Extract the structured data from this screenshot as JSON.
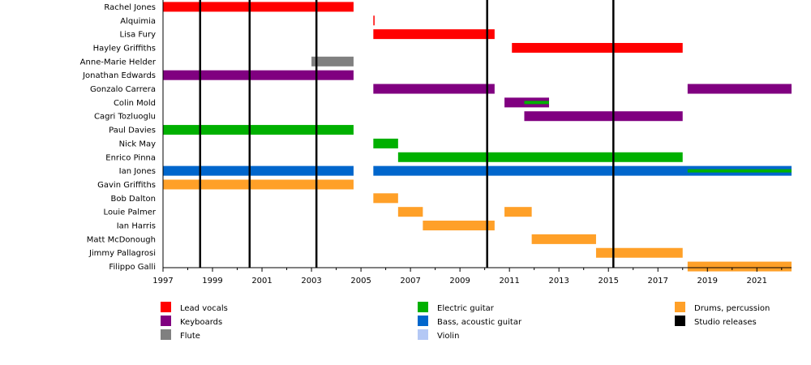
{
  "chart_data": {
    "type": "timeline",
    "title": "",
    "xlabel": "",
    "ylabel": "",
    "xlim": [
      1997,
      2022.4
    ],
    "x_ticks": [
      "1997",
      "1999",
      "2001",
      "2003",
      "2005",
      "2007",
      "2009",
      "2011",
      "2013",
      "2015",
      "2017",
      "2019",
      "2021"
    ],
    "members": [
      "Rachel Jones",
      "Alquimia",
      "Lisa Fury",
      "Hayley Griffiths",
      "Anne-Marie Helder",
      "Jonathan Edwards",
      "Gonzalo Carrera",
      "Colin Mold",
      "Cagri Tozluoglu",
      "Paul Davies",
      "Nick May",
      "Enrico Pinna",
      "Ian Jones",
      "Gavin Griffiths",
      "Bob Dalton",
      "Louie Palmer",
      "Ian Harris",
      "Matt McDonough",
      "Jimmy Pallagrosi",
      "Filippo Galli"
    ],
    "roles": [
      {
        "key": "vocals",
        "label": "Lead vocals",
        "color": "#ff0000"
      },
      {
        "key": "keyboards",
        "label": "Keyboards",
        "color": "#800080"
      },
      {
        "key": "flute",
        "label": "Flute",
        "color": "#808080"
      },
      {
        "key": "guitar",
        "label": "Electric guitar",
        "color": "#00b000"
      },
      {
        "key": "bass",
        "label": "Bass, acoustic guitar",
        "color": "#0066cc"
      },
      {
        "key": "violin",
        "label": "Violin",
        "color": "#b4c8f5"
      },
      {
        "key": "drums",
        "label": "Drums, percussion",
        "color": "#ffa028"
      },
      {
        "key": "studio",
        "label": "Studio releases",
        "color": "#000000"
      }
    ],
    "bars": [
      {
        "member": "Rachel Jones",
        "role": "vocals",
        "start": 1997,
        "end": 2004.7
      },
      {
        "member": "Alquimia",
        "role": "vocals",
        "start": 2005.5,
        "end": 2005.55
      },
      {
        "member": "Lisa Fury",
        "role": "vocals",
        "start": 2005.5,
        "end": 2010.4
      },
      {
        "member": "Hayley Griffiths",
        "role": "vocals",
        "start": 2011.1,
        "end": 2018.0
      },
      {
        "member": "Anne-Marie Helder",
        "role": "flute",
        "start": 2003.0,
        "end": 2004.7
      },
      {
        "member": "Jonathan Edwards",
        "role": "keyboards",
        "start": 1997,
        "end": 2004.7
      },
      {
        "member": "Gonzalo Carrera",
        "role": "keyboards",
        "start": 2005.5,
        "end": 2010.4
      },
      {
        "member": "Gonzalo Carrera",
        "role": "keyboards",
        "start": 2018.2,
        "end": 2022.4
      },
      {
        "member": "Colin Mold",
        "role": "keyboards",
        "start": 2010.8,
        "end": 2012.6
      },
      {
        "member": "Cagri Tozluoglu",
        "role": "keyboards",
        "start": 2011.6,
        "end": 2018.0
      },
      {
        "member": "Paul Davies",
        "role": "guitar",
        "start": 1997,
        "end": 2004.7
      },
      {
        "member": "Nick May",
        "role": "guitar",
        "start": 2005.5,
        "end": 2006.5
      },
      {
        "member": "Enrico Pinna",
        "role": "guitar",
        "start": 2006.5,
        "end": 2018.0
      },
      {
        "member": "Ian Jones",
        "role": "bass",
        "start": 1997,
        "end": 2004.7
      },
      {
        "member": "Ian Jones",
        "role": "bass",
        "start": 2005.5,
        "end": 2022.4
      },
      {
        "member": "Gavin Griffiths",
        "role": "drums",
        "start": 1997,
        "end": 2004.7
      },
      {
        "member": "Bob Dalton",
        "role": "drums",
        "start": 2005.5,
        "end": 2006.5
      },
      {
        "member": "Louie Palmer",
        "role": "drums",
        "start": 2006.5,
        "end": 2007.5
      },
      {
        "member": "Louie Palmer",
        "role": "drums",
        "start": 2010.8,
        "end": 2011.9
      },
      {
        "member": "Ian Harris",
        "role": "drums",
        "start": 2007.5,
        "end": 2010.4
      },
      {
        "member": "Matt McDonough",
        "role": "drums",
        "start": 2011.9,
        "end": 2014.5
      },
      {
        "member": "Jimmy Pallagrosi",
        "role": "drums",
        "start": 2014.5,
        "end": 2018.0
      },
      {
        "member": "Filippo Galli",
        "role": "drums",
        "start": 2018.2,
        "end": 2022.4
      }
    ],
    "secondary_bars": [
      {
        "member": "Colin Mold",
        "role": "guitar",
        "start": 2011.6,
        "end": 2012.6
      },
      {
        "member": "Ian Jones",
        "role": "guitar",
        "start": 2018.2,
        "end": 2022.4
      }
    ],
    "studio_releases": [
      1998.5,
      2000.5,
      2003.2,
      2010.1,
      2015.2
    ]
  }
}
